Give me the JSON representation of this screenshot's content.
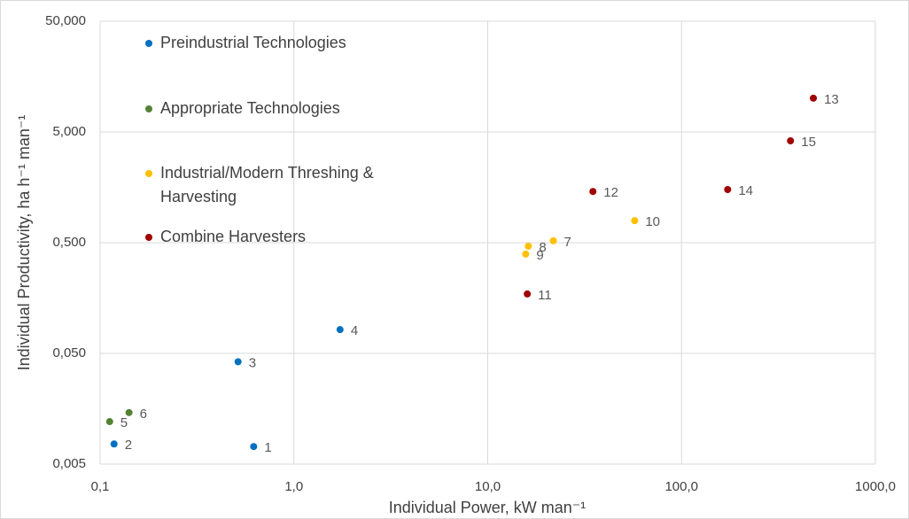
{
  "chart_data": {
    "type": "scatter",
    "x_label": "Individual Power, kW man⁻¹",
    "y_label": "Individual Productivity, ha h⁻¹ man⁻¹",
    "xscale": "log",
    "yscale": "log",
    "grid": true,
    "legend": "upper left",
    "xlim": [
      0.1,
      1000
    ],
    "ylim": [
      0.005,
      50
    ],
    "xticks": [
      {
        "value": 0.1,
        "label": "0,1"
      },
      {
        "value": 1,
        "label": "1,0"
      },
      {
        "value": 10,
        "label": "10,0"
      },
      {
        "value": 100,
        "label": "100,0"
      },
      {
        "value": 1000,
        "label": "1000,0"
      }
    ],
    "yticks": [
      {
        "value": 0.005,
        "label": "0,005"
      },
      {
        "value": 0.05,
        "label": "0,050"
      },
      {
        "value": 0.5,
        "label": "0,500"
      },
      {
        "value": 5,
        "label": "5,000"
      },
      {
        "value": 50,
        "label": "50,000"
      }
    ],
    "series": [
      {
        "name": "Preindustrial Technologies",
        "color": "#0070c0",
        "labels": [
          "1",
          "2",
          "3",
          "4"
        ],
        "x": [
          0.62,
          0.118,
          0.515,
          1.73
        ],
        "values": [
          0.0072,
          0.0076,
          0.042,
          0.082
        ]
      },
      {
        "name": "Appropriate Technologies",
        "color": "#548235",
        "labels": [
          "5",
          "6"
        ],
        "x": [
          0.112,
          0.141
        ],
        "values": [
          0.0121,
          0.0146
        ]
      },
      {
        "name": "Industrial/Modern Threshing & Harvesting",
        "color": "#ffc000",
        "labels": [
          "7",
          "8",
          "9",
          "10"
        ],
        "x": [
          21.8,
          16.2,
          15.7,
          57.3
        ],
        "values": [
          0.52,
          0.465,
          0.394,
          0.79
        ]
      },
      {
        "name": "Combine Harvesters",
        "color": "#a00000",
        "labels": [
          "11",
          "12",
          "13",
          "14",
          "15"
        ],
        "x": [
          16.0,
          34.9,
          479,
          173,
          365
        ],
        "values": [
          0.172,
          1.45,
          10.1,
          1.51,
          4.16
        ]
      }
    ]
  }
}
